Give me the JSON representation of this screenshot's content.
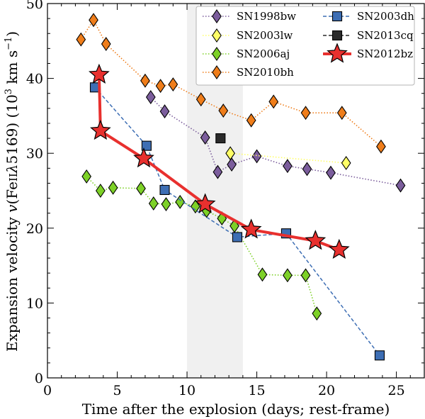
{
  "chart_data": {
    "type": "scatter",
    "title": "",
    "xlabel": "Time after the explosion (days; rest-frame)",
    "ylabel_parts": {
      "prefix": "Expansion velocity ",
      "v": "v",
      "paren_open": "(",
      "ion": "Fe",
      "ion_state": "II",
      "lambda": "λ",
      "wavelength": "5169",
      "paren_close": ")",
      "unit_open": " (10",
      "unit_exp": "3",
      "unit_mid": " km s",
      "unit_exp2": "−1",
      "unit_close": ")"
    },
    "xlim": [
      0,
      27
    ],
    "ylim": [
      0,
      50
    ],
    "xticks": [
      0,
      5,
      10,
      15,
      20,
      25
    ],
    "yticks": [
      0,
      10,
      20,
      30,
      40,
      50
    ],
    "xtick_labels": [
      "0",
      "5",
      "10",
      "15",
      "20",
      "25"
    ],
    "ytick_labels": [
      "0",
      "10",
      "20",
      "30",
      "40",
      "50"
    ],
    "shaded_region": {
      "x_start": 10,
      "x_end": 14,
      "color": "#f0f0f0"
    },
    "legend_position": "top-right",
    "series": [
      {
        "name": "SN1998bw",
        "marker": "diamond",
        "color": "#7b5d9c",
        "line": "dotted",
        "x": [
          7.4,
          8.4,
          11.3,
          12.2,
          13.2,
          15.0,
          17.2,
          18.6,
          20.3,
          25.3
        ],
        "y": [
          37.5,
          35.6,
          32.1,
          27.5,
          28.5,
          29.6,
          28.3,
          27.9,
          27.4,
          25.7
        ]
      },
      {
        "name": "SN2003lw",
        "marker": "diamond",
        "color": "#ffff66",
        "line": "dotted",
        "x": [
          13.1,
          21.4
        ],
        "y": [
          30.0,
          28.7
        ]
      },
      {
        "name": "SN2006aj",
        "marker": "diamond",
        "color": "#7dd127",
        "line": "dotted",
        "x": [
          2.8,
          3.8,
          4.7,
          6.7,
          7.6,
          8.5,
          9.5,
          10.6,
          11.4,
          12.5,
          13.4,
          15.4,
          17.2,
          18.5,
          19.3
        ],
        "y": [
          26.9,
          25.0,
          25.4,
          25.3,
          23.3,
          23.2,
          23.5,
          22.9,
          22.3,
          21.3,
          20.3,
          13.8,
          13.7,
          13.7,
          8.6
        ]
      },
      {
        "name": "SN2010bh",
        "marker": "diamond",
        "color": "#ef7d1a",
        "line": "dotted",
        "x": [
          2.4,
          3.3,
          4.2,
          7.0,
          8.1,
          9.0,
          11.0,
          12.6,
          14.6,
          16.2,
          18.5,
          21.1,
          23.9
        ],
        "y": [
          45.2,
          47.8,
          44.6,
          39.7,
          39.0,
          39.2,
          37.2,
          35.7,
          34.4,
          36.9,
          35.4,
          35.4,
          30.9
        ]
      },
      {
        "name": "SN2003dh",
        "marker": "square",
        "color": "#3d6eb4",
        "line": "dashed",
        "x": [
          3.4,
          7.1,
          8.4,
          13.6,
          17.1,
          23.8
        ],
        "y": [
          38.8,
          31.0,
          25.1,
          18.8,
          19.3,
          3.0
        ]
      },
      {
        "name": "SN2013cq",
        "marker": "square",
        "color": "#2a2a2a",
        "line": "dashed",
        "x": [
          12.4
        ],
        "y": [
          32.0
        ]
      },
      {
        "name": "SN2012bz",
        "marker": "star",
        "color": "#e8302e",
        "line": "solid",
        "x": [
          3.7,
          3.8,
          6.9,
          11.3,
          14.6,
          19.2,
          20.9
        ],
        "y": [
          40.5,
          33.0,
          29.3,
          23.2,
          19.8,
          18.3,
          17.1
        ]
      }
    ]
  }
}
